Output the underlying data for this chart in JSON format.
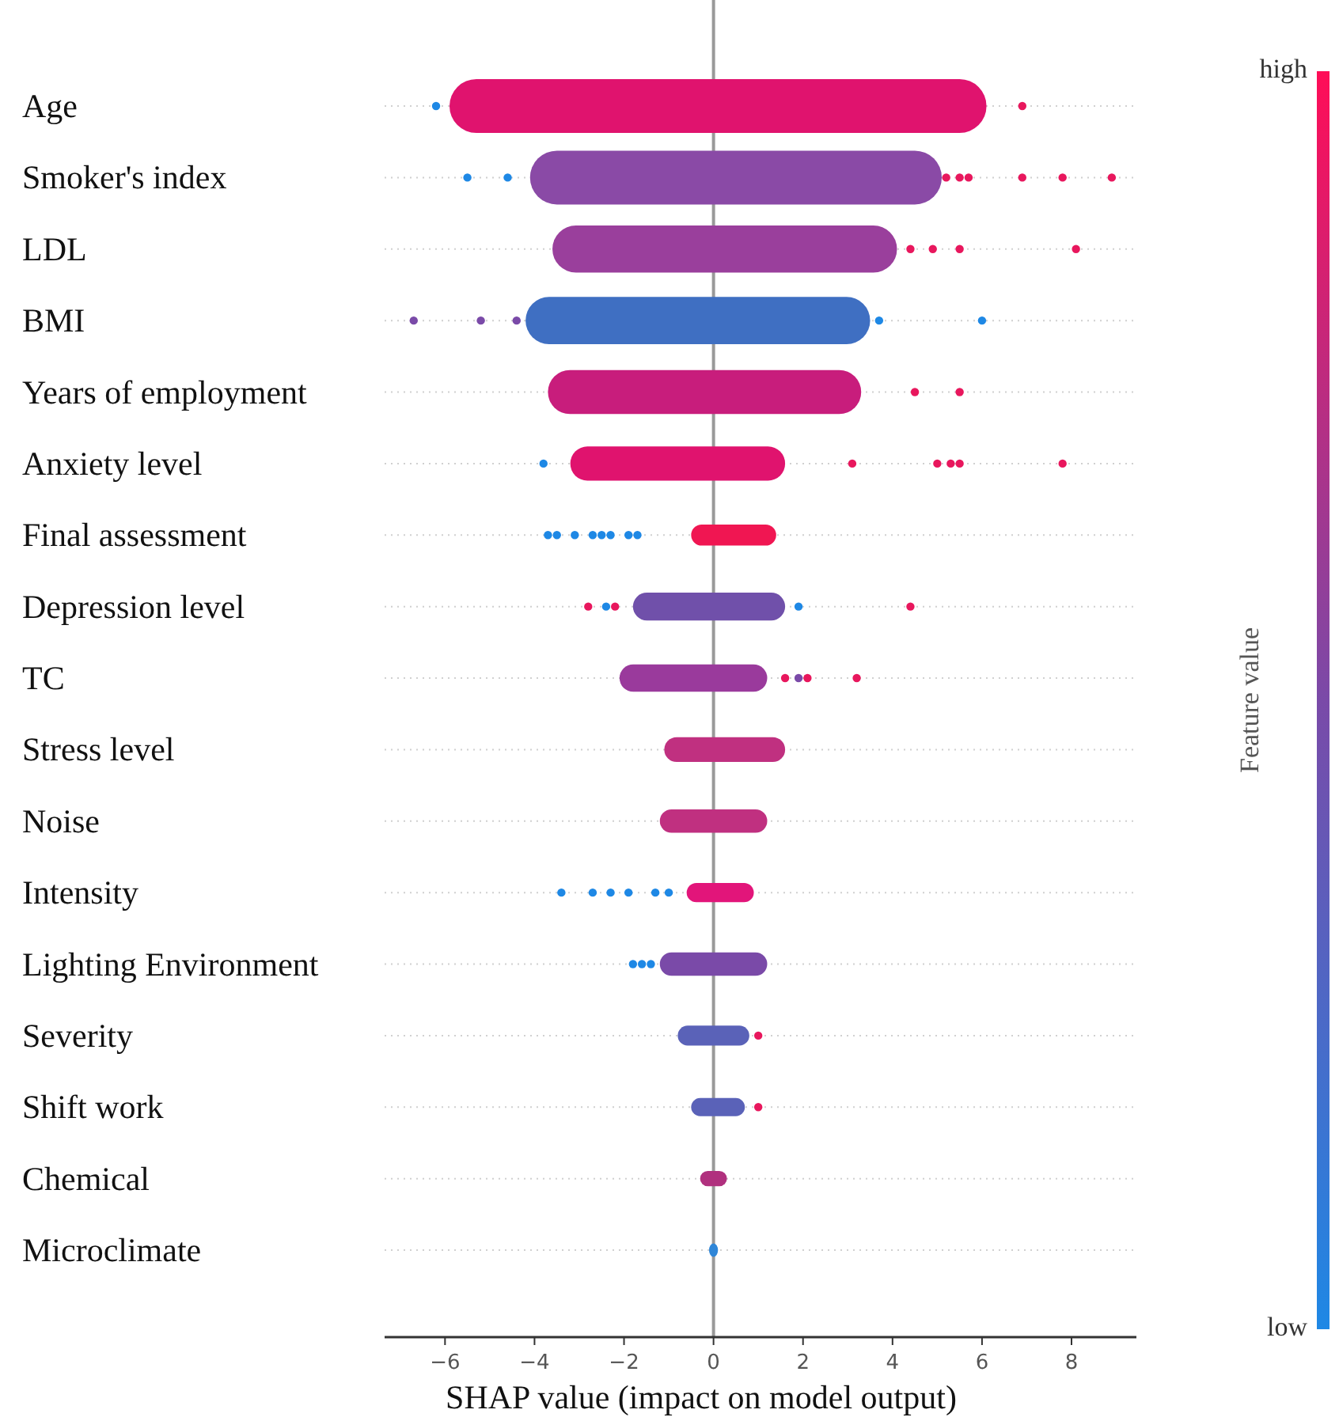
{
  "chart_data": {
    "type": "bar",
    "orientation": "horizontal",
    "xlabel": "SHAP value (impact on model output)",
    "clabel": "Feature value",
    "categories": [
      "Age",
      "Smoker's index",
      "LDL",
      "BMI",
      "Years of employment",
      "Anxiety level",
      "Final assessment",
      "Depression level",
      "TC",
      "Stress level",
      "Noise",
      "Intensity",
      "Lighting Environment",
      "Severity",
      "Shift work",
      "Chemical",
      "Microclimate"
    ],
    "series": [
      {
        "base": [
          -5.9,
          -4.1,
          -3.6,
          -4.2,
          -3.7,
          -3.2,
          -0.5,
          -1.8,
          -2.1,
          -1.1,
          -1.2,
          -0.6,
          -1.2,
          -0.8,
          -0.5,
          -0.3,
          -0.1
        ],
        "values": [
          12.0,
          9.2,
          7.7,
          7.7,
          7.0,
          4.8,
          1.9,
          3.4,
          3.3,
          2.7,
          2.4,
          1.5,
          2.4,
          1.6,
          1.2,
          0.6,
          0.2
        ],
        "colors": [
          "#e0136e",
          "#8a4aa6",
          "#9a3f9c",
          "#3f6fc2",
          "#c81d7c",
          "#e0136e",
          "#f01652",
          "#7050aa",
          "#9a3a9c",
          "#c03080",
          "#c03080",
          "#e2157a",
          "#7a4aa8",
          "#5a62b8",
          "#5a62b8",
          "#b0307e",
          "#2f86d8"
        ]
      },
      {
        "type": "scatter",
        "marker": "circle",
        "x": [
          "Age",
          "Age",
          "Smoker's index",
          "Smoker's index",
          "Smoker's index",
          "Smoker's index",
          "Smoker's index",
          "Smoker's index",
          "Smoker's index",
          "Smoker's index",
          "LDL",
          "LDL",
          "LDL",
          "LDL",
          "BMI",
          "BMI",
          "BMI",
          "BMI",
          "BMI",
          "Years of employment",
          "Years of employment",
          "Anxiety level",
          "Anxiety level",
          "Anxiety level",
          "Anxiety level",
          "Anxiety level",
          "Anxiety level",
          "Final assessment",
          "Final assessment",
          "Final assessment",
          "Final assessment",
          "Final assessment",
          "Final assessment",
          "Final assessment",
          "Final assessment",
          "Depression level",
          "Depression level",
          "Depression level",
          "Depression level",
          "Depression level",
          "TC",
          "TC",
          "TC",
          "TC",
          "Intensity",
          "Intensity",
          "Intensity",
          "Intensity",
          "Intensity",
          "Intensity",
          "Lighting Environment",
          "Lighting Environment",
          "Lighting Environment",
          "Severity",
          "Shift work"
        ],
        "values": [
          -6.2,
          6.9,
          -5.5,
          -4.6,
          5.2,
          5.5,
          5.7,
          6.9,
          7.8,
          8.9,
          4.4,
          4.9,
          5.5,
          8.1,
          -6.7,
          -5.2,
          -4.4,
          3.7,
          6.0,
          4.5,
          5.5,
          -3.8,
          3.1,
          5.0,
          5.3,
          5.5,
          7.8,
          -3.7,
          -3.5,
          -3.1,
          -2.7,
          -2.5,
          -2.3,
          -1.9,
          -1.7,
          -2.8,
          -2.4,
          -2.2,
          1.9,
          4.4,
          1.6,
          1.9,
          2.1,
          3.2,
          -3.4,
          -2.7,
          -2.3,
          -1.9,
          -1.3,
          -1.0,
          -1.8,
          -1.6,
          -1.4,
          1.0,
          1.0
        ],
        "colors": [
          "#1e88e5",
          "#e8175d",
          "#1e88e5",
          "#1e88e5",
          "#e8175d",
          "#e8175d",
          "#e8175d",
          "#e8175d",
          "#e8175d",
          "#e8175d",
          "#e8175d",
          "#e8175d",
          "#e8175d",
          "#e8175d",
          "#7a4aa8",
          "#7a4aa8",
          "#7a4aa8",
          "#1e88e5",
          "#1e88e5",
          "#e8175d",
          "#e8175d",
          "#1e88e5",
          "#e8175d",
          "#e8175d",
          "#e8175d",
          "#e8175d",
          "#e8175d",
          "#1e88e5",
          "#1e88e5",
          "#1e88e5",
          "#1e88e5",
          "#1e88e5",
          "#1e88e5",
          "#1e88e5",
          "#1e88e5",
          "#e8175d",
          "#1e88e5",
          "#e8175d",
          "#1e88e5",
          "#e8175d",
          "#e8175d",
          "#7a4aa8",
          "#e8175d",
          "#e8175d",
          "#1e88e5",
          "#1e88e5",
          "#1e88e5",
          "#1e88e5",
          "#1e88e5",
          "#1e88e5",
          "#1e88e5",
          "#1e88e5",
          "#1e88e5",
          "#e8175d",
          "#e8175d"
        ]
      }
    ],
    "xlim": [
      -7.35,
      9.45
    ],
    "xticks": [
      {
        "value": -6,
        "label": "−6"
      },
      {
        "value": -4,
        "label": "−4"
      },
      {
        "value": -2,
        "label": "−2"
      },
      {
        "value": 0,
        "label": "0"
      },
      {
        "value": 2,
        "label": "2"
      },
      {
        "value": 4,
        "label": "4"
      },
      {
        "value": 6,
        "label": "6"
      },
      {
        "value": 8,
        "label": "8"
      }
    ],
    "grid": "y",
    "ref_lines": [
      {
        "axis": "x",
        "value": 0,
        "label": null,
        "color": "#999999"
      }
    ],
    "clim": [
      0,
      1
    ],
    "cticks": [
      {
        "value": 0,
        "label": "low"
      },
      {
        "value": 1,
        "label": "high"
      }
    ]
  }
}
